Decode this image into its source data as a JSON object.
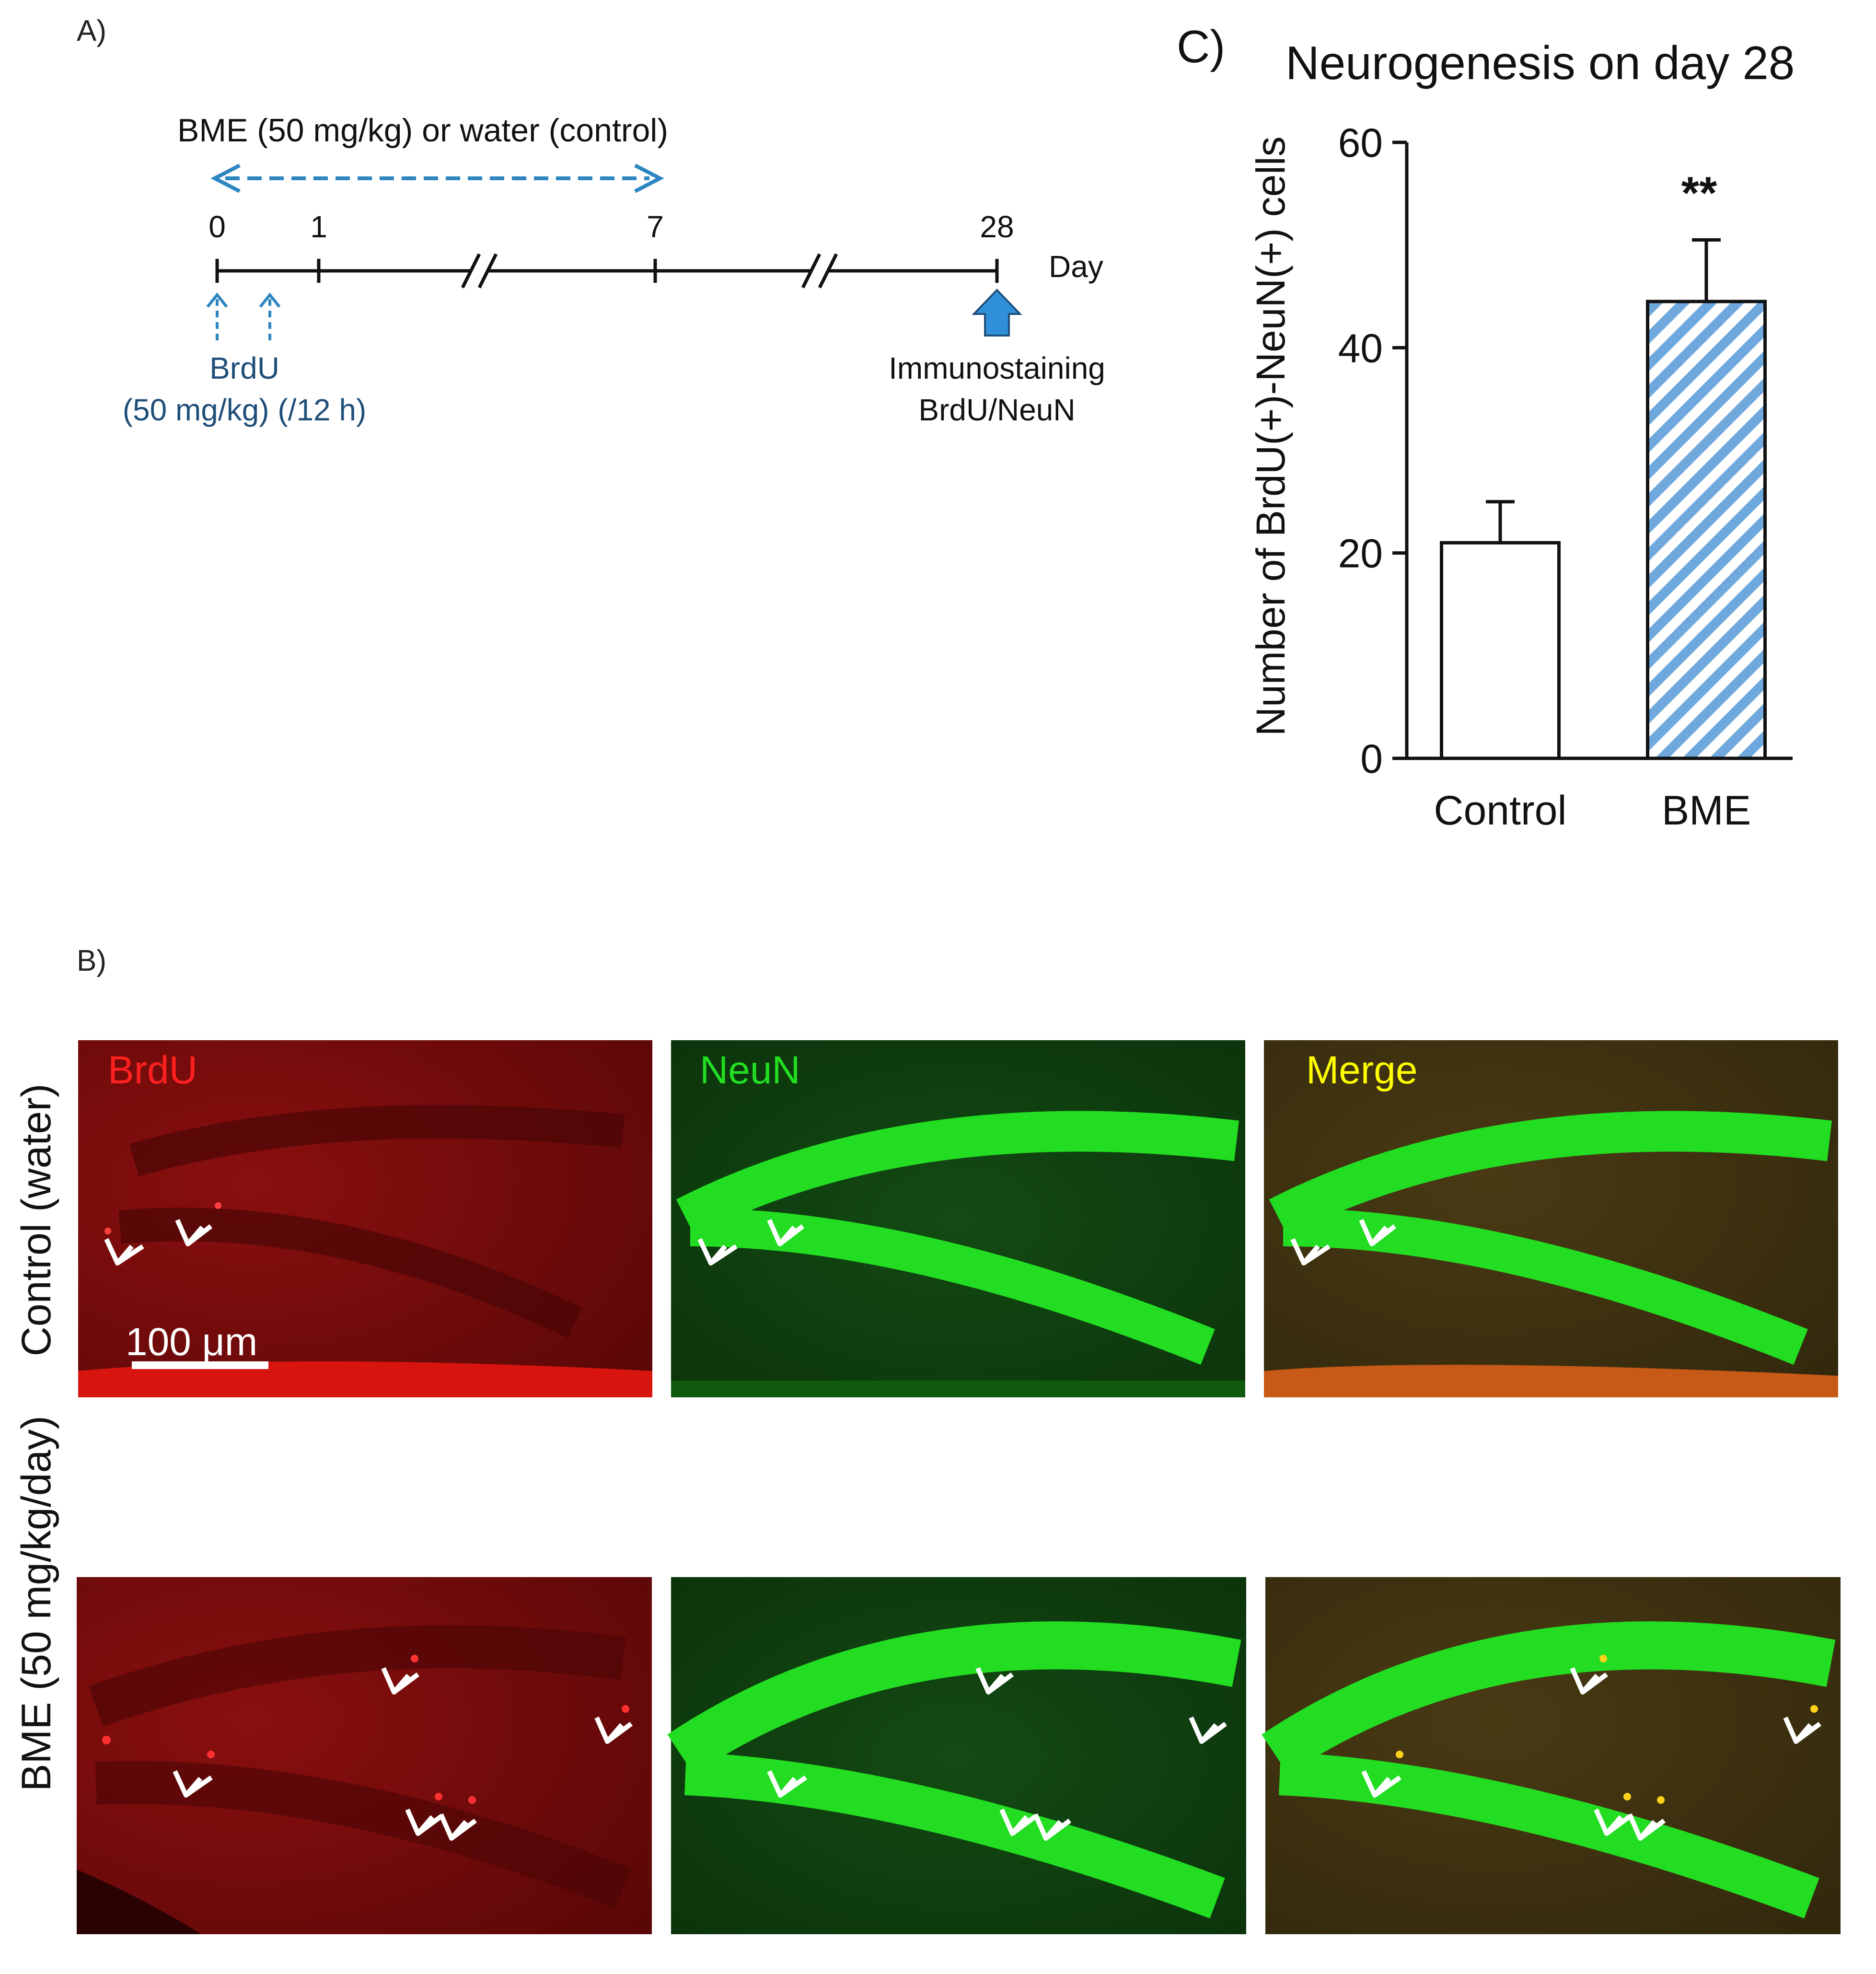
{
  "panel_a": {
    "label": "A)",
    "treatment_text": "BME (50 mg/kg) or water (control)",
    "days": [
      "0",
      "1",
      "7",
      "28"
    ],
    "day_unit": "Day",
    "brdu_line1": "BrdU",
    "brdu_line2": "(50 mg/kg) (/12 h)",
    "stain_line1": "Immunostaining",
    "stain_line2": "BrdU/NeuN",
    "dashed_color": "#2e86c1",
    "brdu_text_color": "#1f4e79",
    "arrow_fill": "#2f8fd8"
  },
  "panel_b": {
    "label": "B)",
    "row_labels": [
      "Control (water)",
      "BME (50 mg/kg/day)"
    ],
    "channels": [
      {
        "label": "BrdU",
        "color": "#ff2020"
      },
      {
        "label": "NeuN",
        "color": "#22dd22"
      },
      {
        "label": "Merge",
        "color": "#ffff00"
      }
    ],
    "scale_bar": "100 μm"
  },
  "panel_c": {
    "label": "C)"
  },
  "chart_data": {
    "type": "bar",
    "title": "Neurogenesis on day 28",
    "categories": [
      "Control",
      "BME"
    ],
    "values": [
      21,
      44.5
    ],
    "errors": [
      4,
      6
    ],
    "ylabel": "Number of BrdU(+)-NeuN(+) cells",
    "ylim": [
      0,
      60
    ],
    "yticks": [
      "0",
      "20",
      "40",
      "60"
    ],
    "significance": [
      "",
      "**"
    ],
    "bar_fills": [
      "white",
      "diagonal-hatch"
    ],
    "hatch_color": "#6fa8dc"
  }
}
